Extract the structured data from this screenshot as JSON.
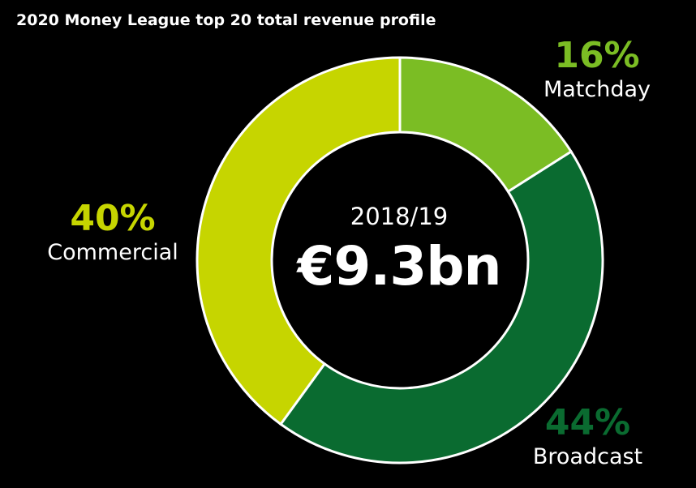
{
  "chart_data": {
    "type": "pie",
    "title": "2020 Money League top 20 total revenue profile",
    "center": {
      "year": "2018/19",
      "total": "€9.3bn"
    },
    "segments": [
      {
        "name": "Matchday",
        "value": 16,
        "label": "16%",
        "color": "#7bbd24",
        "label_color": "#7bbd24"
      },
      {
        "name": "Broadcast",
        "value": 44,
        "label": "44%",
        "color": "#0a6b30",
        "label_color": "#0a6b30"
      },
      {
        "name": "Commercial",
        "value": 40,
        "label": "40%",
        "color": "#c6d500",
        "label_color": "#c6d500"
      }
    ]
  }
}
